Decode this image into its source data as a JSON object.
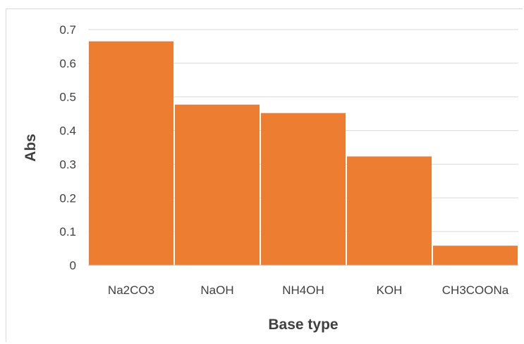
{
  "chart_data": {
    "type": "bar",
    "title": "",
    "xlabel": "Base type",
    "ylabel": "Abs",
    "categories": [
      "Na2CO3",
      "NaOH",
      "NH4OH",
      "KOH",
      "CH3COONa"
    ],
    "values": [
      0.665,
      0.477,
      0.452,
      0.323,
      0.058
    ],
    "ylim": [
      0,
      0.7
    ],
    "yticks": [
      0,
      0.1,
      0.2,
      0.3,
      0.4,
      0.5,
      0.6,
      0.7
    ],
    "ytick_labels": [
      "0",
      "0.1",
      "0.2",
      "0.3",
      "0.4",
      "0.5",
      "0.6",
      "0.7"
    ],
    "grid": true,
    "legend": "none",
    "bar_color": "#ED7D31"
  }
}
